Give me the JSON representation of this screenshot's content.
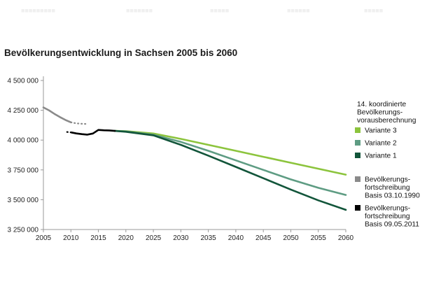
{
  "header": {
    "faint_items": [
      "■■■■■■■■■",
      "■■■■■■■",
      "■■■■■",
      "■■■■■■",
      "■■■■■"
    ]
  },
  "colors": {
    "variante_3": "#8cc43d",
    "variante_2": "#5e9c83",
    "variante_1": "#12553a",
    "fortschreibung_1990": "#8a8a8a",
    "fortschreibung_2011": "#000000",
    "axis": "#999999"
  },
  "chart_data": {
    "type": "line",
    "title": "Bevölkerungsentwicklung in Sachsen 2005 bis 2060",
    "xlabel": "",
    "ylabel": "",
    "xlim": [
      2005,
      2060
    ],
    "ylim": [
      3250000,
      4500000
    ],
    "x_ticks": [
      2005,
      2010,
      2015,
      2020,
      2025,
      2030,
      2035,
      2040,
      2045,
      2050,
      2055,
      2060
    ],
    "y_ticks": [
      3250000,
      3500000,
      3750000,
      4000000,
      4250000,
      4500000
    ],
    "y_tick_labels": [
      "3 250 000",
      "3 500 000",
      "3 750 000",
      "4 000 000",
      "4 250 000",
      "4 500 000"
    ],
    "legend_heading": [
      "14. koordinierte",
      "Bevölkerungs-",
      "vorausberechnung"
    ],
    "series": [
      {
        "name": "Variante 3",
        "legend_lines": [
          "Variante 3"
        ],
        "color": "#8cc43d",
        "style": "solid",
        "points": [
          [
            2018,
            4077000
          ],
          [
            2020,
            4075000
          ],
          [
            2025,
            4055000
          ],
          [
            2030,
            4010000
          ],
          [
            2035,
            3960000
          ],
          [
            2040,
            3910000
          ],
          [
            2045,
            3860000
          ],
          [
            2050,
            3810000
          ],
          [
            2055,
            3760000
          ],
          [
            2060,
            3710000
          ]
        ]
      },
      {
        "name": "Variante 2",
        "legend_lines": [
          "Variante 2"
        ],
        "color": "#5e9c83",
        "style": "solid",
        "points": [
          [
            2018,
            4077000
          ],
          [
            2020,
            4073000
          ],
          [
            2025,
            4045000
          ],
          [
            2030,
            3985000
          ],
          [
            2035,
            3910000
          ],
          [
            2040,
            3830000
          ],
          [
            2045,
            3750000
          ],
          [
            2050,
            3670000
          ],
          [
            2055,
            3600000
          ],
          [
            2060,
            3540000
          ]
        ]
      },
      {
        "name": "Variante 1",
        "legend_lines": [
          "Variante 1"
        ],
        "color": "#12553a",
        "style": "solid",
        "points": [
          [
            2018,
            4077000
          ],
          [
            2020,
            4070000
          ],
          [
            2025,
            4040000
          ],
          [
            2030,
            3960000
          ],
          [
            2035,
            3870000
          ],
          [
            2040,
            3775000
          ],
          [
            2045,
            3680000
          ],
          [
            2050,
            3585000
          ],
          [
            2055,
            3495000
          ],
          [
            2060,
            3415000
          ]
        ]
      },
      {
        "name": "Bevölkerungsfortschreibung Basis 03.10.1990",
        "legend_lines": [
          "Bevölkerungs-",
          "fortschreibung",
          "Basis 03.10.1990"
        ],
        "color": "#8a8a8a",
        "style": "solid",
        "points": [
          [
            2005,
            4274000
          ],
          [
            2006,
            4250000
          ],
          [
            2007,
            4220000
          ],
          [
            2008,
            4193000
          ],
          [
            2009,
            4169000
          ],
          [
            2010,
            4149000
          ]
        ]
      },
      {
        "name": "Bevölkerungsfortschreibung Basis 03.10.1990 (dotted)",
        "legend_lines": [],
        "color": "#8a8a8a",
        "style": "dotted",
        "points": [
          [
            2010,
            4149000
          ],
          [
            2011,
            4140000
          ],
          [
            2012,
            4137000
          ],
          [
            2013,
            4135000
          ]
        ]
      },
      {
        "name": "Bevölkerungsfortschreibung Basis 09.05.2011",
        "legend_lines": [
          "Bevölkerungs-",
          "fortschreibung",
          "Basis  09.05.2011"
        ],
        "color": "#000000",
        "style": "solid",
        "points": [
          [
            2010.1,
            4064000
          ],
          [
            2011,
            4056000
          ],
          [
            2012,
            4050000
          ],
          [
            2013,
            4046000
          ],
          [
            2014,
            4055000
          ],
          [
            2015,
            4085000
          ],
          [
            2016,
            4082000
          ],
          [
            2017,
            4081000
          ],
          [
            2018,
            4077000
          ]
        ]
      },
      {
        "name": "Bevölkerungsfortschreibung Basis 09.05.2011 (dotted)",
        "legend_lines": [],
        "color": "#000000",
        "style": "dotted",
        "points": [
          [
            2009.3,
            4068000
          ],
          [
            2010.1,
            4064000
          ]
        ]
      }
    ],
    "grid": false
  }
}
